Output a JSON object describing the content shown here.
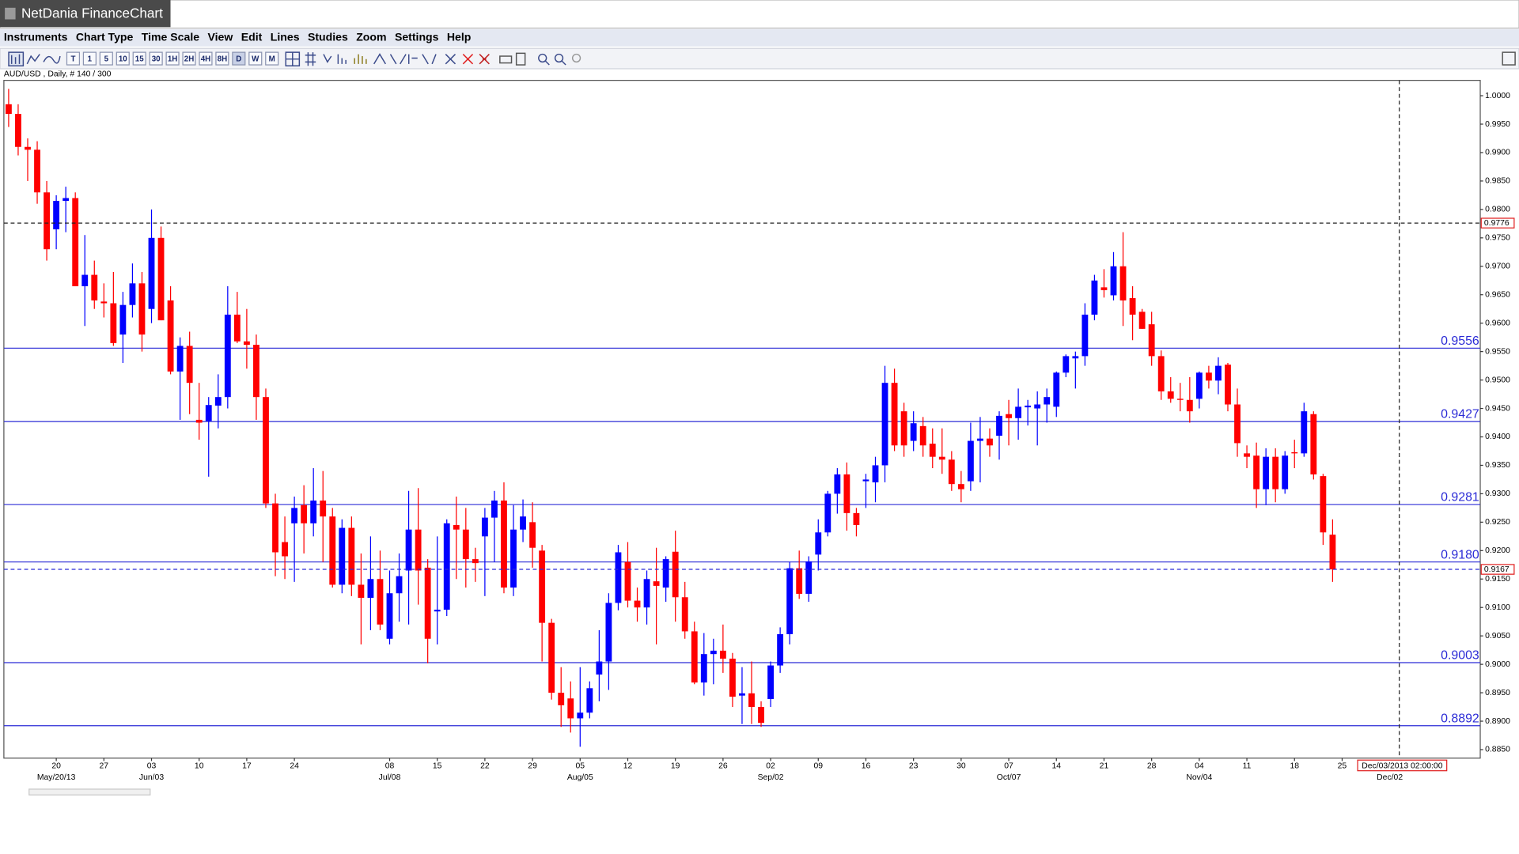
{
  "window": {
    "title": "NetDania FinanceChart"
  },
  "menu": [
    "Instruments",
    "Chart Type",
    "Time Scale",
    "View",
    "Edit",
    "Lines",
    "Studies",
    "Zoom",
    "Settings",
    "Help"
  ],
  "toolbar": {
    "timeframes": [
      "T",
      "1",
      "5",
      "10",
      "15",
      "30",
      "1H",
      "2H",
      "4H",
      "8H",
      "D",
      "W",
      "M"
    ]
  },
  "chart_data": {
    "type": "candlestick",
    "title": "AUD/USD , Daily, # 140 / 300",
    "up_color": "#0000ff",
    "down_color": "#ff0000",
    "categories": [
      null,
      null,
      null,
      null,
      null,
      "20",
      null,
      null,
      null,
      null,
      "27",
      null,
      null,
      null,
      null,
      "03",
      null,
      null,
      null,
      null,
      "10",
      null,
      null,
      null,
      null,
      "17",
      null,
      null,
      null,
      null,
      "24",
      null,
      null,
      null,
      null,
      null,
      null,
      null,
      null,
      null,
      "08",
      null,
      null,
      null,
      null,
      "15",
      null,
      null,
      null,
      null,
      "22",
      null,
      null,
      null,
      null,
      "29",
      null,
      null,
      null,
      null,
      "05",
      null,
      null,
      null,
      null,
      "12",
      null,
      null,
      null,
      null,
      "19",
      null,
      null,
      null,
      null,
      "26",
      null,
      null,
      null,
      null,
      "02",
      null,
      null,
      null,
      null,
      "09",
      null,
      null,
      null,
      null,
      "16",
      null,
      null,
      null,
      null,
      "23",
      null,
      null,
      null,
      null,
      "30",
      null,
      null,
      null,
      null,
      "07",
      null,
      null,
      null,
      null,
      "14",
      null,
      null,
      null,
      null,
      "21",
      null,
      null,
      null,
      null,
      "28",
      null,
      null,
      null,
      null,
      "04",
      null,
      null,
      null,
      null,
      "11",
      null,
      null,
      null,
      null,
      "18",
      null,
      null,
      null,
      null,
      "25",
      null,
      null,
      null,
      null,
      null,
      null,
      null,
      null,
      null,
      null,
      null,
      null,
      null,
      null
    ],
    "period_labels": [
      null,
      null,
      null,
      null,
      null,
      "May/20/13",
      null,
      null,
      null,
      null,
      null,
      null,
      null,
      null,
      null,
      "Jun/03",
      null,
      null,
      null,
      null,
      null,
      null,
      null,
      null,
      null,
      null,
      null,
      null,
      null,
      null,
      null,
      null,
      null,
      null,
      null,
      null,
      null,
      null,
      null,
      null,
      "Jul/08",
      null,
      null,
      null,
      null,
      null,
      null,
      null,
      null,
      null,
      null,
      null,
      null,
      null,
      null,
      null,
      null,
      null,
      null,
      null,
      "Aug/05",
      null,
      null,
      null,
      null,
      null,
      null,
      null,
      null,
      null,
      null,
      null,
      null,
      null,
      null,
      null,
      null,
      null,
      null,
      null,
      "Sep/02",
      null,
      null,
      null,
      null,
      null,
      null,
      null,
      null,
      null,
      null,
      null,
      null,
      null,
      null,
      null,
      null,
      null,
      null,
      null,
      null,
      null,
      null,
      null,
      null,
      "Oct/07",
      null,
      null,
      null,
      null,
      null,
      null,
      null,
      null,
      null,
      null,
      null,
      null,
      null,
      null,
      null,
      null,
      null,
      null,
      null,
      "Nov/04",
      null,
      null,
      null,
      null,
      null,
      null,
      null,
      null,
      null,
      null,
      null,
      null,
      null,
      null,
      null,
      null,
      null,
      null,
      null,
      "Dec/02",
      null,
      null,
      null,
      null,
      null,
      null,
      null,
      null,
      null
    ],
    "ohlc": [
      [
        0.9985,
        1.0012,
        0.9945,
        0.9968
      ],
      [
        0.9968,
        0.9985,
        0.9895,
        0.991
      ],
      [
        0.991,
        0.9925,
        0.985,
        0.9905
      ],
      [
        0.9905,
        0.992,
        0.981,
        0.983
      ],
      [
        0.983,
        0.985,
        0.971,
        0.973
      ],
      [
        0.9765,
        0.9825,
        0.973,
        0.9815
      ],
      [
        0.9815,
        0.984,
        0.976,
        0.982
      ],
      [
        0.982,
        0.983,
        0.9665,
        0.9665
      ],
      [
        0.9665,
        0.9755,
        0.9595,
        0.9685
      ],
      [
        0.9685,
        0.971,
        0.9625,
        0.964
      ],
      [
        0.9638,
        0.967,
        0.961,
        0.9635
      ],
      [
        0.9635,
        0.969,
        0.956,
        0.9565
      ],
      [
        0.958,
        0.9655,
        0.953,
        0.9632
      ],
      [
        0.9632,
        0.9705,
        0.961,
        0.967
      ],
      [
        0.967,
        0.969,
        0.955,
        0.958
      ],
      [
        0.9625,
        0.98,
        0.96,
        0.975
      ],
      [
        0.975,
        0.977,
        0.9605,
        0.9605
      ],
      [
        0.964,
        0.9665,
        0.951,
        0.9515
      ],
      [
        0.9515,
        0.9575,
        0.943,
        0.956
      ],
      [
        0.956,
        0.9585,
        0.944,
        0.9495
      ],
      [
        0.943,
        0.9495,
        0.9395,
        0.9425
      ],
      [
        0.9428,
        0.947,
        0.933,
        0.9456
      ],
      [
        0.9455,
        0.951,
        0.9415,
        0.947
      ],
      [
        0.947,
        0.9665,
        0.945,
        0.9615
      ],
      [
        0.9615,
        0.9655,
        0.9565,
        0.9568
      ],
      [
        0.9568,
        0.9625,
        0.952,
        0.9562
      ],
      [
        0.9562,
        0.958,
        0.943,
        0.947
      ],
      [
        0.947,
        0.9485,
        0.9275,
        0.9283
      ],
      [
        0.9283,
        0.93,
        0.9155,
        0.9197
      ],
      [
        0.9215,
        0.926,
        0.915,
        0.919
      ],
      [
        0.9248,
        0.9295,
        0.9145,
        0.9275
      ],
      [
        0.928,
        0.9315,
        0.9195,
        0.9248
      ],
      [
        0.9248,
        0.9345,
        0.9225,
        0.9288
      ],
      [
        0.9288,
        0.934,
        0.918,
        0.926
      ],
      [
        0.926,
        0.9275,
        0.9135,
        0.914
      ],
      [
        0.914,
        0.9255,
        0.9125,
        0.924
      ],
      [
        0.924,
        0.926,
        0.912,
        0.914
      ],
      [
        0.914,
        0.9195,
        0.9035,
        0.9117
      ],
      [
        0.9117,
        0.9225,
        0.906,
        0.915
      ],
      [
        0.915,
        0.92,
        0.906,
        0.907
      ],
      [
        0.9045,
        0.9165,
        0.9035,
        0.9125
      ],
      [
        0.9125,
        0.9195,
        0.9075,
        0.9155
      ],
      [
        0.9165,
        0.9305,
        0.907,
        0.9237
      ],
      [
        0.9237,
        0.931,
        0.9105,
        0.9165
      ],
      [
        0.917,
        0.9185,
        0.9002,
        0.9045
      ],
      [
        0.9093,
        0.9225,
        0.9035,
        0.9096
      ],
      [
        0.9096,
        0.9255,
        0.9085,
        0.9248
      ],
      [
        0.9245,
        0.9295,
        0.915,
        0.9237
      ],
      [
        0.9237,
        0.9275,
        0.9135,
        0.9185
      ],
      [
        0.9185,
        0.9205,
        0.9145,
        0.9178
      ],
      [
        0.9225,
        0.9275,
        0.912,
        0.9258
      ],
      [
        0.9258,
        0.9305,
        0.918,
        0.9288
      ],
      [
        0.9288,
        0.932,
        0.9125,
        0.9135
      ],
      [
        0.9135,
        0.928,
        0.912,
        0.9237
      ],
      [
        0.9237,
        0.929,
        0.9215,
        0.926
      ],
      [
        0.925,
        0.9285,
        0.917,
        0.9205
      ],
      [
        0.92,
        0.921,
        0.9005,
        0.9073
      ],
      [
        0.9073,
        0.908,
        0.8938,
        0.895
      ],
      [
        0.895,
        0.8995,
        0.889,
        0.8928
      ],
      [
        0.894,
        0.897,
        0.888,
        0.8905
      ],
      [
        0.8905,
        0.8995,
        0.8855,
        0.8915
      ],
      [
        0.8915,
        0.897,
        0.8905,
        0.8958
      ],
      [
        0.8982,
        0.906,
        0.8935,
        0.9005
      ],
      [
        0.9005,
        0.9125,
        0.8955,
        0.9108
      ],
      [
        0.9108,
        0.921,
        0.9095,
        0.9197
      ],
      [
        0.918,
        0.9215,
        0.91,
        0.9112
      ],
      [
        0.9112,
        0.9135,
        0.9075,
        0.91
      ],
      [
        0.91,
        0.9165,
        0.907,
        0.915
      ],
      [
        0.9146,
        0.9205,
        0.9035,
        0.9138
      ],
      [
        0.9135,
        0.919,
        0.911,
        0.9185
      ],
      [
        0.9198,
        0.9235,
        0.9075,
        0.9118
      ],
      [
        0.9118,
        0.9145,
        0.9045,
        0.9058
      ],
      [
        0.9058,
        0.9075,
        0.8965,
        0.8968
      ],
      [
        0.8968,
        0.9055,
        0.8945,
        0.9018
      ],
      [
        0.9018,
        0.9045,
        0.8965,
        0.9024
      ],
      [
        0.9024,
        0.907,
        0.8985,
        0.901
      ],
      [
        0.901,
        0.902,
        0.8925,
        0.8943
      ],
      [
        0.8945,
        0.8995,
        0.8895,
        0.8949
      ],
      [
        0.8949,
        0.9005,
        0.8895,
        0.8925
      ],
      [
        0.8925,
        0.8935,
        0.889,
        0.8897
      ],
      [
        0.8939,
        0.9005,
        0.8925,
        0.8998
      ],
      [
        0.8998,
        0.9065,
        0.8985,
        0.9053
      ],
      [
        0.9053,
        0.918,
        0.9035,
        0.9169
      ],
      [
        0.9169,
        0.92,
        0.9115,
        0.9124
      ],
      [
        0.9124,
        0.919,
        0.911,
        0.9181
      ],
      [
        0.9193,
        0.9255,
        0.9165,
        0.9232
      ],
      [
        0.9232,
        0.9305,
        0.9225,
        0.93
      ],
      [
        0.93,
        0.9345,
        0.9265,
        0.9334
      ],
      [
        0.9334,
        0.9355,
        0.9235,
        0.9266
      ],
      [
        0.9266,
        0.9275,
        0.9225,
        0.9245
      ],
      [
        0.9322,
        0.9335,
        0.9275,
        0.9325
      ],
      [
        0.932,
        0.9365,
        0.9285,
        0.935
      ],
      [
        0.935,
        0.9525,
        0.932,
        0.9495
      ],
      [
        0.9495,
        0.952,
        0.9375,
        0.9385
      ],
      [
        0.9445,
        0.946,
        0.9365,
        0.9385
      ],
      [
        0.9393,
        0.9445,
        0.9375,
        0.9424
      ],
      [
        0.9419,
        0.9435,
        0.9365,
        0.9385
      ],
      [
        0.9388,
        0.9415,
        0.9345,
        0.9365
      ],
      [
        0.9365,
        0.9415,
        0.9335,
        0.936
      ],
      [
        0.936,
        0.9375,
        0.9305,
        0.9317
      ],
      [
        0.9317,
        0.934,
        0.9285,
        0.9308
      ],
      [
        0.9322,
        0.9425,
        0.9305,
        0.9393
      ],
      [
        0.9393,
        0.9435,
        0.932,
        0.9397
      ],
      [
        0.9397,
        0.9415,
        0.9365,
        0.9385
      ],
      [
        0.9402,
        0.9445,
        0.936,
        0.9437
      ],
      [
        0.944,
        0.9465,
        0.9385,
        0.9433
      ],
      [
        0.9433,
        0.9485,
        0.9395,
        0.9453
      ],
      [
        0.9452,
        0.9465,
        0.942,
        0.9455
      ],
      [
        0.945,
        0.948,
        0.9385,
        0.9457
      ],
      [
        0.9457,
        0.9485,
        0.9425,
        0.947
      ],
      [
        0.9453,
        0.9515,
        0.9435,
        0.9513
      ],
      [
        0.9513,
        0.9545,
        0.9505,
        0.9542
      ],
      [
        0.9538,
        0.955,
        0.9485,
        0.9542
      ],
      [
        0.9542,
        0.9635,
        0.9525,
        0.9615
      ],
      [
        0.9615,
        0.9685,
        0.9605,
        0.9675
      ],
      [
        0.9663,
        0.9695,
        0.9645,
        0.9658
      ],
      [
        0.9649,
        0.9725,
        0.964,
        0.97
      ],
      [
        0.97,
        0.976,
        0.9595,
        0.964
      ],
      [
        0.9644,
        0.9665,
        0.957,
        0.9615
      ],
      [
        0.962,
        0.9625,
        0.959,
        0.959
      ],
      [
        0.9598,
        0.962,
        0.9525,
        0.9542
      ],
      [
        0.9542,
        0.9552,
        0.9465,
        0.948
      ],
      [
        0.948,
        0.9505,
        0.946,
        0.9467
      ],
      [
        0.9467,
        0.9495,
        0.9445,
        0.9465
      ],
      [
        0.9465,
        0.9505,
        0.9425,
        0.9445
      ],
      [
        0.9467,
        0.9515,
        0.945,
        0.9513
      ],
      [
        0.9513,
        0.9525,
        0.9485,
        0.9499
      ],
      [
        0.9499,
        0.954,
        0.9475,
        0.9525
      ],
      [
        0.9527,
        0.953,
        0.9445,
        0.9457
      ],
      [
        0.9457,
        0.9485,
        0.9365,
        0.9389
      ],
      [
        0.9371,
        0.9385,
        0.9345,
        0.9365
      ],
      [
        0.9367,
        0.939,
        0.9275,
        0.9308
      ],
      [
        0.9308,
        0.938,
        0.928,
        0.9365
      ],
      [
        0.9365,
        0.938,
        0.9285,
        0.9308
      ],
      [
        0.9308,
        0.9375,
        0.93,
        0.9367
      ],
      [
        0.9373,
        0.9395,
        0.9345,
        0.9371
      ],
      [
        0.9371,
        0.946,
        0.9365,
        0.9445
      ],
      [
        0.944,
        0.9445,
        0.9325,
        0.9334
      ],
      [
        0.9331,
        0.9335,
        0.921,
        0.9232
      ],
      [
        0.9228,
        0.9255,
        0.9145,
        0.9167
      ],
      null,
      null,
      null,
      null,
      null,
      null,
      null,
      null,
      null,
      null,
      null,
      null,
      null,
      null,
      null
    ],
    "ylim": [
      0.8835,
      1.0027
    ],
    "yticks": [
      {
        "value": 0.885,
        "label": "0.8850"
      },
      {
        "value": 0.89,
        "label": "0.8900"
      },
      {
        "value": 0.895,
        "label": "0.8950"
      },
      {
        "value": 0.9,
        "label": "0.9000"
      },
      {
        "value": 0.905,
        "label": "0.9050"
      },
      {
        "value": 0.91,
        "label": "0.9100"
      },
      {
        "value": 0.915,
        "label": "0.9150"
      },
      {
        "value": 0.92,
        "label": "0.9200"
      },
      {
        "value": 0.925,
        "label": "0.9250"
      },
      {
        "value": 0.93,
        "label": "0.9300"
      },
      {
        "value": 0.935,
        "label": "0.9350"
      },
      {
        "value": 0.94,
        "label": "0.9400"
      },
      {
        "value": 0.945,
        "label": "0.9450"
      },
      {
        "value": 0.95,
        "label": "0.9500"
      },
      {
        "value": 0.955,
        "label": "0.9550"
      },
      {
        "value": 0.96,
        "label": "0.9600"
      },
      {
        "value": 0.965,
        "label": "0.9650"
      },
      {
        "value": 0.97,
        "label": "0.9700"
      },
      {
        "value": 0.975,
        "label": "0.9750"
      },
      {
        "value": 0.98,
        "label": "0.9800"
      },
      {
        "value": 0.985,
        "label": "0.9850"
      },
      {
        "value": 0.99,
        "label": "0.9900"
      },
      {
        "value": 0.995,
        "label": "0.9950"
      },
      {
        "value": 1.0,
        "label": "1.0000"
      }
    ],
    "hlines": [
      {
        "value": 0.9556,
        "label": "0.9556"
      },
      {
        "value": 0.9427,
        "label": "0.9427"
      },
      {
        "value": 0.9281,
        "label": "0.9281"
      },
      {
        "value": 0.918,
        "label": "0.9180"
      },
      {
        "value": 0.9003,
        "label": "0.9003"
      },
      {
        "value": 0.8892,
        "label": "0.8892"
      }
    ],
    "hline_color": "#2b2bd6",
    "last_price": {
      "value": 0.9167,
      "label": "0.9167"
    },
    "crosshair": {
      "price": {
        "value": 0.9776,
        "label": "0.9776"
      },
      "index": 146,
      "time_label": "Dec/03/2013 02:00:00"
    }
  }
}
